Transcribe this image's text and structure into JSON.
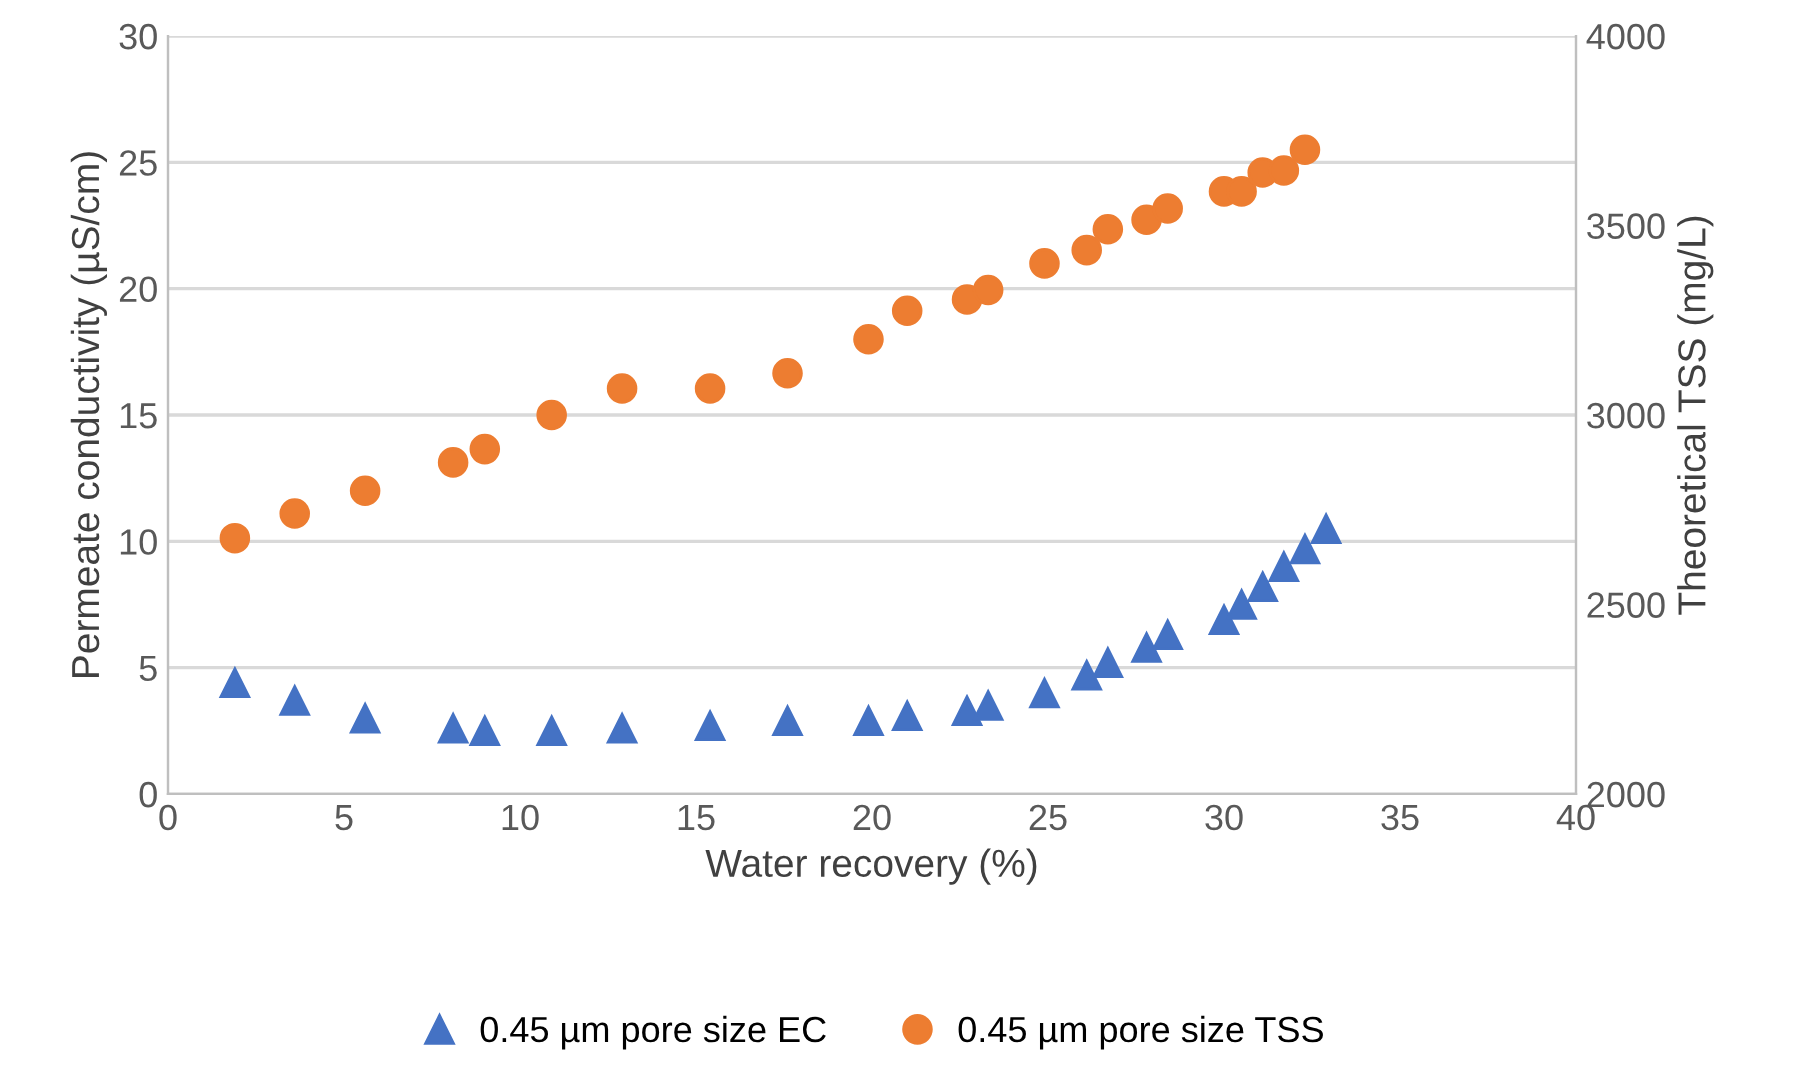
{
  "chart_data": {
    "type": "scatter",
    "xlabel": "Water recovery (%)",
    "ylabel": "Permeate conductivity (µS/cm)",
    "y2label": "Theoretical TSS (mg/L)",
    "xlim": [
      0,
      40
    ],
    "xticks": [
      0,
      5,
      10,
      15,
      20,
      25,
      30,
      35,
      40
    ],
    "ylim": [
      0,
      30
    ],
    "yticks": [
      0,
      5,
      10,
      15,
      20,
      25,
      30
    ],
    "y2lim": [
      2000,
      4000
    ],
    "y2ticks": [
      2000,
      2500,
      3000,
      3500,
      4000
    ],
    "grid": "y",
    "legend": "bottom",
    "series": [
      {
        "name": "0.45 µm pore size EC",
        "color": "#4472c4",
        "marker": "triangle",
        "x": [
          1.9,
          3.6,
          5.6,
          8.1,
          9.0,
          10.9,
          12.9,
          15.4,
          17.6,
          19.9,
          21.0,
          22.7,
          23.3,
          24.9,
          26.1,
          26.7,
          27.8,
          28.4,
          30.0,
          30.5,
          31.1,
          31.7,
          32.3,
          32.9
        ],
        "values": [
          4.4,
          3.7,
          3.0,
          2.6,
          2.5,
          2.5,
          2.6,
          2.7,
          2.9,
          2.9,
          3.1,
          3.3,
          3.5,
          4.0,
          4.7,
          5.2,
          5.8,
          6.3,
          6.9,
          7.5,
          8.2,
          9.0,
          9.7,
          10.5
        ]
      },
      {
        "name": "0.45 µm pore size TSS",
        "color": "#ed7d31",
        "marker": "circle",
        "axis": "y2",
        "x": [
          1.9,
          3.6,
          5.6,
          8.1,
          9.0,
          10.9,
          12.9,
          15.4,
          17.6,
          19.9,
          21.0,
          22.7,
          23.3,
          24.9,
          26.1,
          26.7,
          27.8,
          28.4,
          30.0,
          30.5,
          31.1,
          31.7,
          32.3
        ],
        "values": [
          2675,
          2740,
          2800,
          2875,
          2910,
          3000,
          3070,
          3070,
          3110,
          3200,
          3275,
          3305,
          3330,
          3400,
          3435,
          3490,
          3515,
          3545,
          3590,
          3590,
          3640,
          3645,
          3700
        ]
      }
    ]
  }
}
